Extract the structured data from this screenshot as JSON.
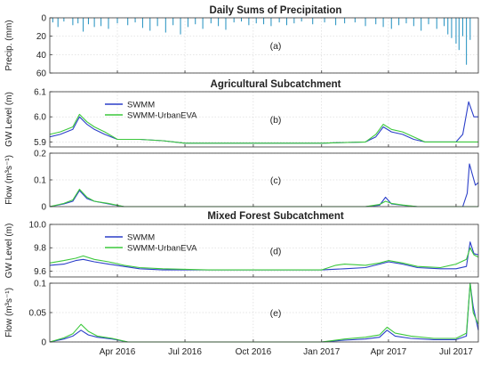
{
  "colors": {
    "precip": "#1f8fbf",
    "swmm": "#2b3fc9",
    "urbaneva": "#3cc83c",
    "band": "#c9f2ee"
  },
  "xaxis": {
    "start": "2016-01-01",
    "end": "2017-07-31",
    "ticks": [
      {
        "date": "2016-04-01",
        "label": "Apr 2016"
      },
      {
        "date": "2016-07-01",
        "label": "Jul 2016"
      },
      {
        "date": "2016-10-01",
        "label": "Oct 2016"
      },
      {
        "date": "2017-01-01",
        "label": "Jan 2017"
      },
      {
        "date": "2017-04-01",
        "label": "Apr 2017"
      },
      {
        "date": "2017-07-01",
        "label": "Jul 2017"
      }
    ]
  },
  "section_titles": {
    "precip": "Daily Sums of Precipitation",
    "agri": "Agricultural Subcatchment",
    "forest": "Mixed Forest Subcatchment"
  },
  "chart_data": [
    {
      "id": "a",
      "panel_label": "(a)",
      "type": "bar",
      "title": "Daily Sums of Precipitation",
      "ylabel": "Precip. (mm)",
      "ylim": [
        0,
        60
      ],
      "yticks": [
        0,
        20,
        40,
        60
      ],
      "yreversed": true,
      "grid": true,
      "x": [
        "2016-01-05",
        "2016-01-12",
        "2016-01-20",
        "2016-02-01",
        "2016-02-08",
        "2016-02-15",
        "2016-02-22",
        "2016-03-01",
        "2016-03-10",
        "2016-03-20",
        "2016-04-01",
        "2016-04-15",
        "2016-04-25",
        "2016-05-05",
        "2016-05-15",
        "2016-05-25",
        "2016-06-05",
        "2016-06-15",
        "2016-06-25",
        "2016-07-05",
        "2016-07-15",
        "2016-07-25",
        "2016-08-05",
        "2016-08-15",
        "2016-08-25",
        "2016-09-05",
        "2016-09-15",
        "2016-09-25",
        "2016-10-05",
        "2016-10-15",
        "2016-10-25",
        "2016-11-05",
        "2016-11-15",
        "2016-11-25",
        "2016-12-05",
        "2016-12-20",
        "2017-01-05",
        "2017-01-20",
        "2017-02-01",
        "2017-02-15",
        "2017-03-01",
        "2017-03-15",
        "2017-03-25",
        "2017-04-05",
        "2017-04-15",
        "2017-04-25",
        "2017-05-05",
        "2017-05-15",
        "2017-05-25",
        "2017-06-05",
        "2017-06-15",
        "2017-06-20",
        "2017-06-25",
        "2017-07-01",
        "2017-07-05",
        "2017-07-10",
        "2017-07-15",
        "2017-07-20"
      ],
      "values": [
        5,
        10,
        4,
        8,
        6,
        15,
        7,
        10,
        9,
        12,
        6,
        8,
        5,
        11,
        14,
        9,
        16,
        8,
        18,
        10,
        7,
        12,
        6,
        9,
        13,
        5,
        4,
        8,
        6,
        7,
        9,
        5,
        8,
        6,
        4,
        7,
        5,
        8,
        6,
        5,
        9,
        7,
        10,
        12,
        8,
        6,
        9,
        14,
        7,
        12,
        9,
        18,
        22,
        28,
        35,
        20,
        51,
        24
      ],
      "series": [
        {
          "name": "",
          "color": "#1f8fbf"
        }
      ]
    },
    {
      "id": "b",
      "panel_label": "(b)",
      "type": "line",
      "title": "Agricultural Subcatchment",
      "ylabel": "GW Level (m)",
      "ylim": [
        5.88,
        6.1
      ],
      "yticks": [
        5.9,
        6.0,
        6.1
      ],
      "grid": true,
      "legend": "top-left",
      "series": [
        {
          "name": "SWMM",
          "color": "#2b3fc9",
          "x": [
            "2016-01-01",
            "2016-01-15",
            "2016-02-01",
            "2016-02-10",
            "2016-02-20",
            "2016-03-01",
            "2016-03-15",
            "2016-04-01",
            "2016-05-01",
            "2016-06-01",
            "2016-07-01",
            "2016-08-01",
            "2016-09-01",
            "2016-11-01",
            "2017-01-01",
            "2017-03-01",
            "2017-03-15",
            "2017-03-25",
            "2017-04-05",
            "2017-04-20",
            "2017-05-05",
            "2017-05-20",
            "2017-06-15",
            "2017-07-01",
            "2017-07-10",
            "2017-07-18",
            "2017-07-25",
            "2017-07-31"
          ],
          "y": [
            5.92,
            5.93,
            5.95,
            6.0,
            5.97,
            5.95,
            5.93,
            5.91,
            5.91,
            5.905,
            5.895,
            5.895,
            5.895,
            5.895,
            5.895,
            5.9,
            5.92,
            5.96,
            5.94,
            5.93,
            5.91,
            5.9,
            5.9,
            5.9,
            5.93,
            6.06,
            6.0,
            6.0
          ]
        },
        {
          "name": "SWMM-UrbanEVA",
          "color": "#3cc83c",
          "x": [
            "2016-01-01",
            "2016-01-15",
            "2016-02-01",
            "2016-02-10",
            "2016-02-20",
            "2016-03-01",
            "2016-03-15",
            "2016-04-01",
            "2016-05-01",
            "2016-06-01",
            "2016-07-01",
            "2016-08-01",
            "2016-09-01",
            "2016-11-01",
            "2017-01-01",
            "2017-03-01",
            "2017-03-15",
            "2017-03-25",
            "2017-04-05",
            "2017-04-20",
            "2017-05-05",
            "2017-05-20",
            "2017-06-15",
            "2017-07-01",
            "2017-07-10",
            "2017-07-18",
            "2017-07-25",
            "2017-07-31"
          ],
          "y": [
            5.93,
            5.94,
            5.96,
            6.01,
            5.98,
            5.96,
            5.94,
            5.91,
            5.91,
            5.905,
            5.895,
            5.895,
            5.895,
            5.895,
            5.895,
            5.9,
            5.93,
            5.97,
            5.95,
            5.94,
            5.92,
            5.9,
            5.9,
            5.9,
            5.9,
            5.9,
            5.9,
            5.9
          ]
        }
      ]
    },
    {
      "id": "c",
      "panel_label": "(c)",
      "type": "line",
      "ylabel": "Flow (m³s⁻¹)",
      "ylim": [
        0,
        0.2
      ],
      "yticks": [
        0,
        0.1,
        0.2
      ],
      "grid": true,
      "series": [
        {
          "name": "SWMM",
          "color": "#2b3fc9",
          "x": [
            "2016-01-01",
            "2016-01-20",
            "2016-02-01",
            "2016-02-10",
            "2016-02-20",
            "2016-03-01",
            "2016-03-20",
            "2016-04-10",
            "2016-06-01",
            "2016-09-01",
            "2017-01-01",
            "2017-03-01",
            "2017-03-20",
            "2017-03-28",
            "2017-04-05",
            "2017-04-20",
            "2017-05-10",
            "2017-06-20",
            "2017-07-10",
            "2017-07-16",
            "2017-07-19",
            "2017-07-23",
            "2017-07-27",
            "2017-07-31"
          ],
          "y": [
            0,
            0.01,
            0.02,
            0.06,
            0.03,
            0.02,
            0.01,
            0,
            0,
            0,
            0,
            0,
            0.005,
            0.035,
            0.01,
            0.005,
            0,
            0,
            0,
            0.05,
            0.16,
            0.12,
            0.08,
            0.09
          ]
        },
        {
          "name": "SWMM-UrbanEVA",
          "color": "#3cc83c",
          "x": [
            "2016-01-01",
            "2016-01-20",
            "2016-02-01",
            "2016-02-10",
            "2016-02-20",
            "2016-03-01",
            "2016-03-20",
            "2016-04-10",
            "2016-06-01",
            "2016-09-01",
            "2017-01-01",
            "2017-03-01",
            "2017-03-20",
            "2017-03-28",
            "2017-04-05",
            "2017-04-20",
            "2017-05-10",
            "2017-06-20",
            "2017-07-10",
            "2017-07-31"
          ],
          "y": [
            0,
            0.012,
            0.025,
            0.065,
            0.035,
            0.02,
            0.012,
            0,
            0,
            0,
            0,
            0,
            0.008,
            0.02,
            0.012,
            0.006,
            0,
            0,
            0,
            0
          ]
        }
      ]
    },
    {
      "id": "d",
      "panel_label": "(d)",
      "type": "line",
      "title": "Mixed Forest Subcatchment",
      "ylabel": "GW Level (m)",
      "ylim": [
        9.55,
        10.0
      ],
      "yticks": [
        9.6,
        9.8,
        10.0
      ],
      "grid": true,
      "legend": "top-left",
      "series": [
        {
          "name": "SWMM",
          "color": "#2b3fc9",
          "x": [
            "2016-01-01",
            "2016-01-20",
            "2016-02-05",
            "2016-02-15",
            "2016-03-01",
            "2016-03-20",
            "2016-04-10",
            "2016-05-01",
            "2016-06-01",
            "2016-08-01",
            "2016-10-01",
            "2017-01-01",
            "2017-02-01",
            "2017-03-01",
            "2017-03-20",
            "2017-04-01",
            "2017-04-20",
            "2017-05-10",
            "2017-06-10",
            "2017-07-01",
            "2017-07-15",
            "2017-07-20",
            "2017-07-25",
            "2017-07-31"
          ],
          "y": [
            9.65,
            9.66,
            9.69,
            9.7,
            9.68,
            9.66,
            9.64,
            9.62,
            9.61,
            9.61,
            9.61,
            9.61,
            9.62,
            9.63,
            9.66,
            9.68,
            9.66,
            9.63,
            9.62,
            9.62,
            9.64,
            9.85,
            9.75,
            9.74
          ]
        },
        {
          "name": "SWMM-UrbanEVA",
          "color": "#3cc83c",
          "x": [
            "2016-01-01",
            "2016-01-20",
            "2016-02-05",
            "2016-02-15",
            "2016-03-01",
            "2016-03-20",
            "2016-04-10",
            "2016-05-01",
            "2016-06-01",
            "2016-08-01",
            "2016-10-01",
            "2017-01-01",
            "2017-01-20",
            "2017-02-01",
            "2017-03-01",
            "2017-03-20",
            "2017-04-01",
            "2017-04-20",
            "2017-05-10",
            "2017-06-10",
            "2017-07-01",
            "2017-07-15",
            "2017-07-20",
            "2017-07-25",
            "2017-07-31"
          ],
          "y": [
            9.67,
            9.69,
            9.71,
            9.73,
            9.7,
            9.68,
            9.65,
            9.63,
            9.62,
            9.61,
            9.61,
            9.61,
            9.65,
            9.66,
            9.65,
            9.67,
            9.69,
            9.67,
            9.64,
            9.63,
            9.66,
            9.7,
            9.8,
            9.74,
            9.72
          ]
        }
      ]
    },
    {
      "id": "e",
      "panel_label": "(e)",
      "type": "line",
      "ylabel": "Flow (m³s⁻¹)",
      "ylim": [
        0,
        0.1
      ],
      "yticks": [
        0,
        0.05,
        0.1
      ],
      "grid": true,
      "series": [
        {
          "name": "SWMM",
          "color": "#2b3fc9",
          "x": [
            "2016-01-01",
            "2016-01-20",
            "2016-02-01",
            "2016-02-12",
            "2016-02-22",
            "2016-03-05",
            "2016-03-25",
            "2016-04-15",
            "2016-06-01",
            "2016-09-01",
            "2017-01-01",
            "2017-02-01",
            "2017-03-01",
            "2017-03-20",
            "2017-03-30",
            "2017-04-10",
            "2017-05-01",
            "2017-06-01",
            "2017-07-01",
            "2017-07-15",
            "2017-07-20",
            "2017-07-24",
            "2017-07-31"
          ],
          "y": [
            0,
            0.005,
            0.01,
            0.02,
            0.012,
            0.008,
            0.005,
            0,
            0,
            0,
            0,
            0.003,
            0.005,
            0.008,
            0.02,
            0.01,
            0.006,
            0.004,
            0.004,
            0.01,
            0.1,
            0.06,
            0.02
          ]
        },
        {
          "name": "SWMM-UrbanEVA",
          "color": "#3cc83c",
          "x": [
            "2016-01-01",
            "2016-01-20",
            "2016-02-01",
            "2016-02-12",
            "2016-02-22",
            "2016-03-05",
            "2016-03-25",
            "2016-04-15",
            "2016-06-01",
            "2016-09-01",
            "2017-01-01",
            "2017-02-01",
            "2017-03-01",
            "2017-03-20",
            "2017-03-30",
            "2017-04-10",
            "2017-05-01",
            "2017-06-01",
            "2017-07-01",
            "2017-07-15",
            "2017-07-20",
            "2017-07-24",
            "2017-07-31"
          ],
          "y": [
            0,
            0.007,
            0.014,
            0.03,
            0.018,
            0.01,
            0.006,
            0,
            0,
            0,
            0,
            0.005,
            0.008,
            0.012,
            0.025,
            0.015,
            0.01,
            0.006,
            0.006,
            0.015,
            0.1,
            0.05,
            0.03
          ]
        }
      ]
    }
  ]
}
